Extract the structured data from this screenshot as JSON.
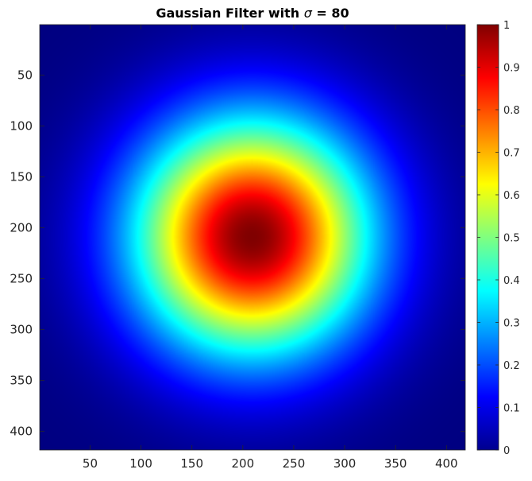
{
  "chart_data": {
    "type": "heatmap",
    "title_prefix": "Gaussian Filter with ",
    "title_symbol": "σ",
    "title_suffix": " = 80",
    "function": "gaussian",
    "sigma": 80,
    "center": [
      209,
      209
    ],
    "x_range": [
      1,
      418
    ],
    "y_range": [
      1,
      418
    ],
    "y_reversed": true,
    "x_ticks": [
      50,
      100,
      150,
      200,
      250,
      300,
      350,
      400
    ],
    "y_ticks": [
      50,
      100,
      150,
      200,
      250,
      300,
      350,
      400
    ],
    "colormap": "jet",
    "colorbar": {
      "range": [
        0,
        1
      ],
      "ticks": [
        0,
        0.1,
        0.2,
        0.3,
        0.4,
        0.5,
        0.6,
        0.7,
        0.8,
        0.9,
        1
      ],
      "tick_labels": [
        "0",
        "0.1",
        "0.2",
        "0.3",
        "0.4",
        "0.5",
        "0.6",
        "0.7",
        "0.8",
        "0.9",
        "1"
      ],
      "placement": "right"
    },
    "grid": false
  }
}
